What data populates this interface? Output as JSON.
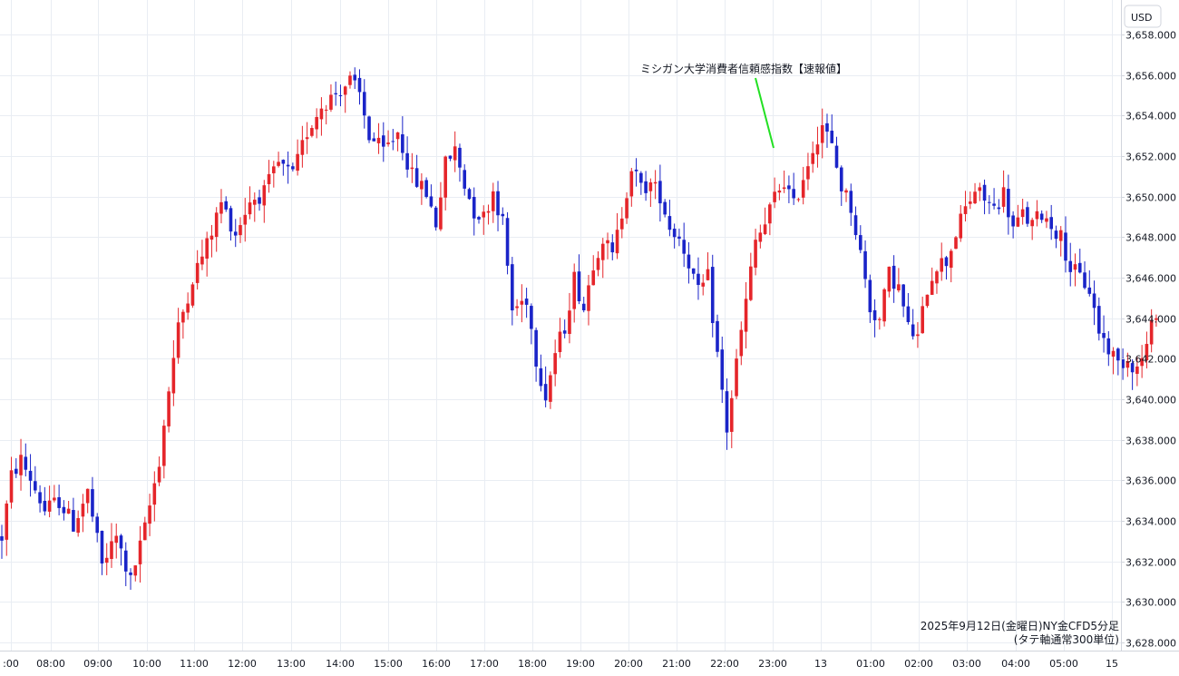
{
  "chart_data": {
    "type": "candlestick",
    "currency_label": "USD",
    "y_ticks": [
      "3,628.000",
      "3,630.000",
      "3,632.000",
      "3,634.000",
      "3,636.000",
      "3,638.000",
      "3,640.000",
      "3,642.000",
      "3,644.000",
      "3,646.000",
      "3,648.000",
      "3,650.000",
      "3,652.000",
      "3,654.000",
      "3,656.000",
      "3,658.000"
    ],
    "y_tick_values": [
      3628,
      3630,
      3632,
      3634,
      3636,
      3638,
      3640,
      3642,
      3644,
      3646,
      3648,
      3650,
      3652,
      3654,
      3656,
      3658
    ],
    "ylim": [
      3627.6,
      3659.7
    ],
    "x_tick_labels": [
      ":00",
      "08:00",
      "09:00",
      "10:00",
      "11:00",
      "12:00",
      "13:00",
      "14:00",
      "15:00",
      "16:00",
      "17:00",
      "18:00",
      "19:00",
      "20:00",
      "21:00",
      "22:00",
      "23:00",
      "13",
      "01:00",
      "02:00",
      "03:00",
      "04:00",
      "05:00",
      "15"
    ],
    "annotation": {
      "text": "ミシガン大学消費者信頼感指数【速報値】",
      "x_time": "23:00",
      "y": 3652.4
    },
    "caption_line1": "2025年9月12日(金曜日)NY金CFD5分足",
    "caption_line2": "(タテ軸通常300単位)",
    "colors": {
      "up": "#e5252a",
      "down": "#1a24c8",
      "grid": "#e9edf3",
      "axis": "#d1d4dc",
      "annotation_line": "#22e022"
    },
    "anchors": [
      [
        0,
        3633.2
      ],
      [
        2,
        3636.2
      ],
      [
        4,
        3637.0
      ],
      [
        6,
        3636.1
      ],
      [
        9,
        3634.5
      ],
      [
        12,
        3635.0
      ],
      [
        15,
        3633.8
      ],
      [
        18,
        3635.4
      ],
      [
        21,
        3631.8
      ],
      [
        24,
        3633.2
      ],
      [
        27,
        3631.0
      ],
      [
        30,
        3633.6
      ],
      [
        33,
        3637.0
      ],
      [
        35,
        3640.5
      ],
      [
        37,
        3643.5
      ],
      [
        40,
        3646.0
      ],
      [
        43,
        3647.6
      ],
      [
        46,
        3649.7
      ],
      [
        49,
        3648.2
      ],
      [
        52,
        3649.8
      ],
      [
        55,
        3650.2
      ],
      [
        58,
        3651.6
      ],
      [
        61,
        3651.0
      ],
      [
        64,
        3653.2
      ],
      [
        67,
        3654.5
      ],
      [
        70,
        3655.1
      ],
      [
        73,
        3655.7
      ],
      [
        75,
        3655.0
      ],
      [
        77,
        3653.0
      ],
      [
        80,
        3652.2
      ],
      [
        83,
        3653.2
      ],
      [
        86,
        3651.0
      ],
      [
        89,
        3650.2
      ],
      [
        91,
        3648.7
      ],
      [
        93,
        3651.6
      ],
      [
        95,
        3652.3
      ],
      [
        97,
        3650.6
      ],
      [
        99,
        3649.3
      ],
      [
        101,
        3649.0
      ],
      [
        103,
        3650.3
      ],
      [
        105,
        3648.7
      ],
      [
        107,
        3644.4
      ],
      [
        110,
        3645.0
      ],
      [
        112,
        3642.0
      ],
      [
        114,
        3640.2
      ],
      [
        116,
        3642.3
      ],
      [
        118,
        3643.6
      ],
      [
        120,
        3646.0
      ],
      [
        122,
        3644.5
      ],
      [
        124,
        3646.8
      ],
      [
        126,
        3648.0
      ],
      [
        128,
        3647.0
      ],
      [
        130,
        3649.2
      ],
      [
        132,
        3651.5
      ],
      [
        134,
        3650.4
      ],
      [
        136,
        3650.6
      ],
      [
        138,
        3650.1
      ],
      [
        140,
        3648.5
      ],
      [
        142,
        3648.0
      ],
      [
        144,
        3646.8
      ],
      [
        146,
        3645.2
      ],
      [
        148,
        3646.0
      ],
      [
        150,
        3642.2
      ],
      [
        152,
        3638.5
      ],
      [
        154,
        3641.8
      ],
      [
        156,
        3644.8
      ],
      [
        158,
        3647.8
      ],
      [
        160,
        3648.6
      ],
      [
        162,
        3650.0
      ],
      [
        164,
        3650.8
      ],
      [
        166,
        3649.5
      ],
      [
        168,
        3651.0
      ],
      [
        170,
        3652.4
      ],
      [
        172,
        3653.6
      ],
      [
        174,
        3652.4
      ],
      [
        176,
        3650.5
      ],
      [
        178,
        3649.5
      ],
      [
        180,
        3647.2
      ],
      [
        182,
        3644.5
      ],
      [
        184,
        3643.9
      ],
      [
        186,
        3646.2
      ],
      [
        188,
        3645.5
      ],
      [
        190,
        3643.5
      ],
      [
        192,
        3643.0
      ],
      [
        194,
        3645.5
      ],
      [
        196,
        3646.7
      ],
      [
        198,
        3646.8
      ],
      [
        200,
        3648.2
      ],
      [
        202,
        3649.4
      ],
      [
        204,
        3650.3
      ],
      [
        206,
        3649.9
      ],
      [
        208,
        3649.4
      ],
      [
        210,
        3650.2
      ],
      [
        212,
        3648.4
      ],
      [
        214,
        3649.1
      ],
      [
        216,
        3648.6
      ],
      [
        218,
        3649.2
      ],
      [
        220,
        3648.6
      ],
      [
        222,
        3648.0
      ],
      [
        224,
        3646.5
      ],
      [
        226,
        3646.0
      ],
      [
        228,
        3645.4
      ],
      [
        230,
        3643.4
      ],
      [
        232,
        3642.5
      ],
      [
        234,
        3641.8
      ],
      [
        236,
        3642.0
      ],
      [
        238,
        3641.5
      ],
      [
        240,
        3642.6
      ],
      [
        242,
        3644.4
      ]
    ]
  }
}
